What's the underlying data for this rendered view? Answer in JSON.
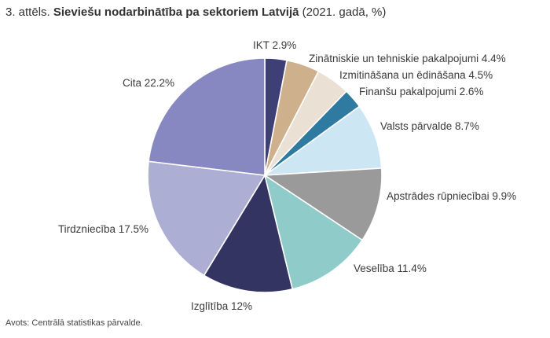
{
  "title": {
    "prefix": "3. attēls.",
    "bold": "Sieviešu nodarbinātība pa sektoriem Latvijā",
    "suffix": "(2021. gadā, %)"
  },
  "source": "Avots: Centrālā statistikas pārvalde.",
  "chart_data": {
    "type": "pie",
    "start": "12 o'clock",
    "direction": "clockwise",
    "slices": [
      {
        "label": "IKT 2.9%",
        "value": 2.9,
        "color": "#3f3f78"
      },
      {
        "label": "Zinātniskie un tehniskie pakalpojumi 4.4%",
        "value": 4.4,
        "color": "#cfb08c"
      },
      {
        "label": "Izmitināšana un ēdināšana 4.5%",
        "value": 4.5,
        "color": "#eae0d3"
      },
      {
        "label": "Finanšu pakalpojumi 2.6%",
        "value": 2.6,
        "color": "#2e7aa1"
      },
      {
        "label": "Valsts pārvalde 8.7%",
        "value": 8.7,
        "color": "#cde6f4"
      },
      {
        "label": "Apstrādes rūpniecībai 9.9%",
        "value": 9.9,
        "color": "#9a9a9a"
      },
      {
        "label": "Veselība 11.4%",
        "value": 11.4,
        "color": "#8ecbc9"
      },
      {
        "label": "Izglītība 12%",
        "value": 12,
        "color": "#333462"
      },
      {
        "label": "Tirdzniecība 17.5%",
        "value": 17.5,
        "color": "#adaed3"
      },
      {
        "label": "Cita 22.2%",
        "value": 22.2,
        "color": "#8788c1"
      }
    ]
  }
}
